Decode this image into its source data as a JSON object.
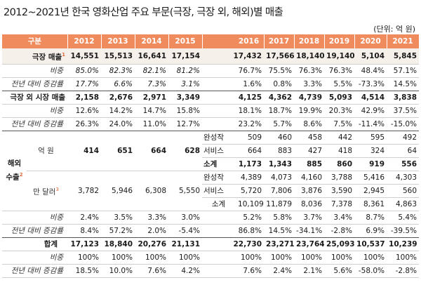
{
  "title": "2012~2021년 한국 영화산업 주요 부문(극장, 극장 외, 해외)별 매출",
  "unit": "(단위: 억 원)",
  "header": {
    "label": "구분",
    "years": [
      "2012",
      "2013",
      "2014",
      "2015",
      "2016",
      "2017",
      "2018",
      "2019",
      "2020",
      "2021"
    ]
  },
  "rows": {
    "theater_sales": {
      "label": "극장 매출",
      "note": "1",
      "values": [
        "14,551",
        "15,513",
        "16,641",
        "17,154",
        "17,432",
        "17,566",
        "18,140",
        "19,140",
        "5,104",
        "5,845"
      ]
    },
    "theater_share": {
      "label": "비중",
      "values": [
        "85.0%",
        "82.3%",
        "82.1%",
        "81.2%",
        "76.7%",
        "75.5%",
        "76.3%",
        "76.3%",
        "48.4%",
        "57.1%"
      ]
    },
    "theater_growth": {
      "label": "전년 대비 증감률",
      "values": [
        "17.7%",
        "6.6%",
        "7.3%",
        "3.1%",
        "1.6%",
        "0.8%",
        "3.3%",
        "5.5%",
        "-73.3%",
        "14.5%"
      ]
    },
    "non_theater_sales": {
      "label": "극장 외 시장 매출",
      "values": [
        "2,158",
        "2,676",
        "2,971",
        "3,349",
        "4,125",
        "4,362",
        "4,739",
        "5,093",
        "4,514",
        "3,838"
      ]
    },
    "non_theater_share": {
      "label": "비중",
      "values": [
        "12.6%",
        "14.2%",
        "14.7%",
        "15.8%",
        "18.1%",
        "18.7%",
        "19.9%",
        "20.3%",
        "42.9%",
        "37.5%"
      ]
    },
    "non_theater_growth": {
      "label": "전년 대비 증감률",
      "values": [
        "26.3%",
        "24.0%",
        "11.0%",
        "12.7%",
        "23.2%",
        "5.7%",
        "8.6%",
        "7.5%",
        "-11.4%",
        "-15.0%"
      ]
    },
    "overseas": {
      "group_label_1": "해외",
      "group_label_2": "수출",
      "note": "2",
      "krw_label": "억 원",
      "krw_early": [
        "414",
        "651",
        "664",
        "628"
      ],
      "krw_finished_label": "완성작",
      "krw_finished": [
        "509",
        "460",
        "458",
        "442",
        "595",
        "492"
      ],
      "krw_service_label": "서비스",
      "krw_service": [
        "664",
        "883",
        "427",
        "418",
        "324",
        "64"
      ],
      "krw_total_label": "소계",
      "krw_total": [
        "1,173",
        "1,343",
        "885",
        "860",
        "919",
        "556"
      ],
      "usd_label": "만 달러",
      "usd_note": "3",
      "usd_early": [
        "3,782",
        "5,946",
        "6,308",
        "5,550"
      ],
      "usd_finished_label": "완성작",
      "usd_finished": [
        "4,389",
        "4,073",
        "4,160",
        "3,788",
        "5,416",
        "4,303"
      ],
      "usd_service_label": "서비스",
      "usd_service": [
        "5,720",
        "7,806",
        "3,876",
        "3,590",
        "2,945",
        "560"
      ],
      "usd_total_label": "소계",
      "usd_total": [
        "10,109",
        "11,879",
        "8,036",
        "7,378",
        "8,361",
        "4,863"
      ]
    },
    "overseas_share": {
      "label": "비중",
      "values": [
        "2.4%",
        "3.5%",
        "3.3%",
        "3.0%",
        "5.2%",
        "5.8%",
        "3.7%",
        "3.4%",
        "8.7%",
        "5.4%"
      ]
    },
    "overseas_growth": {
      "label": "전년 대비 증감률",
      "values": [
        "8.4%",
        "57.2%",
        "2.0%",
        "-5.4%",
        "86.8%",
        "14.5%",
        "-34.1%",
        "-2.8%",
        "6.9%",
        "-39.5%"
      ]
    },
    "total": {
      "label": "합계",
      "values": [
        "17,123",
        "18,840",
        "20,276",
        "21,131",
        "22,730",
        "23,271",
        "23,764",
        "25,093",
        "10,537",
        "10,239"
      ]
    },
    "total_share": {
      "label": "비중",
      "values": [
        "100%",
        "100%",
        "100%",
        "100%",
        "100%",
        "100%",
        "100%",
        "100%",
        "100%",
        "100%"
      ]
    },
    "total_growth": {
      "label": "전년 대비 증감률",
      "values": [
        "18.5%",
        "10.0%",
        "7.6%",
        "4.2%",
        "7.6%",
        "2.4%",
        "2.1%",
        "5.6%",
        "-58.0%",
        "-2.8%"
      ]
    }
  }
}
